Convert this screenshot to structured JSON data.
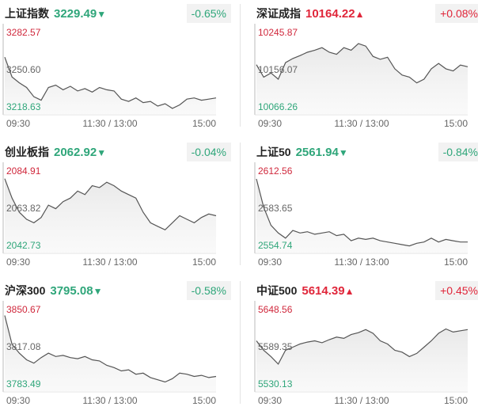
{
  "chart_data": [
    {
      "type": "line",
      "title": "上证指数",
      "price": 3229.49,
      "direction": "▼",
      "change": "-0.65%",
      "accent": "#2fa67a",
      "ylim": [
        3218.63,
        3282.57
      ],
      "yticks": [
        3218.63,
        {
          "value": 3250.6,
          "label": "3250.60"
        },
        3282.57
      ],
      "xticks": [
        "09:30",
        "11:30 / 13:00",
        "15:00"
      ],
      "series": [
        {
          "color": "#555555",
          "values": [
            3262,
            3245,
            3240,
            3236,
            3228,
            3225,
            3236,
            3238,
            3234,
            3237,
            3233,
            3235,
            3232,
            3236,
            3234,
            3233,
            3226,
            3224,
            3227,
            3223,
            3224,
            3220,
            3222,
            3218,
            3221,
            3226,
            3227,
            3225,
            3226,
            3227
          ]
        }
      ]
    },
    {
      "type": "line",
      "title": "深证成指",
      "price": 10164.22,
      "direction": "▲",
      "change": "+0.08%",
      "accent": "#e0263a",
      "ylim": [
        10066.26,
        10245.87
      ],
      "yticks": [
        10066.26,
        10156.07,
        10245.87
      ],
      "xticks": [
        "09:30",
        "11:30 / 13:00",
        "15:00"
      ],
      "series": [
        {
          "color": "#555555",
          "values": [
            10170,
            10140,
            10150,
            10135,
            10175,
            10185,
            10192,
            10200,
            10205,
            10211,
            10200,
            10195,
            10211,
            10205,
            10221,
            10215,
            10190,
            10183,
            10188,
            10160,
            10145,
            10140,
            10126,
            10135,
            10160,
            10173,
            10160,
            10155,
            10169,
            10165
          ]
        }
      ]
    },
    {
      "type": "line",
      "title": "创业板指",
      "price": 2062.92,
      "direction": "▼",
      "change": "-0.04%",
      "accent": "#2fa67a",
      "ylim": [
        2042.73,
        2084.91
      ],
      "yticks": [
        2042.73,
        2063.82,
        2084.91
      ],
      "xticks": [
        "09:30",
        "11:30 / 13:00",
        "15:00"
      ],
      "series": [
        {
          "color": "#555555",
          "values": [
            2081,
            2070,
            2062,
            2058,
            2056,
            2059,
            2066,
            2064,
            2068,
            2070,
            2074,
            2072,
            2077,
            2076,
            2079,
            2077,
            2074,
            2072,
            2070,
            2062,
            2056,
            2054,
            2052,
            2056,
            2060,
            2058,
            2056,
            2059,
            2061,
            2060
          ]
        }
      ]
    },
    {
      "type": "line",
      "title": "上证50",
      "price": 2561.94,
      "direction": "▼",
      "change": "-0.84%",
      "accent": "#2fa67a",
      "ylim": [
        2554.74,
        2612.56
      ],
      "yticks": [
        2554.74,
        2583.65,
        2612.56
      ],
      "xticks": [
        "09:30",
        "11:30 / 13:00",
        "15:00"
      ],
      "series": [
        {
          "color": "#555555",
          "values": [
            2607,
            2585,
            2571,
            2565,
            2561,
            2567,
            2565,
            2566,
            2564,
            2565,
            2566,
            2563,
            2564,
            2559,
            2561,
            2560,
            2561,
            2559,
            2558,
            2557,
            2556,
            2555,
            2557,
            2558,
            2561,
            2558,
            2560,
            2559,
            2558,
            2558
          ]
        }
      ]
    },
    {
      "type": "line",
      "title": "沪深300",
      "price": 3795.08,
      "direction": "▼",
      "change": "-0.58%",
      "accent": "#2fa67a",
      "ylim": [
        3783.49,
        3850.67
      ],
      "yticks": [
        3783.49,
        3817.08,
        3850.67
      ],
      "xticks": [
        "09:30",
        "11:30 / 13:00",
        "15:00"
      ],
      "series": [
        {
          "color": "#555555",
          "values": [
            3846,
            3820,
            3812,
            3806,
            3803,
            3808,
            3812,
            3809,
            3810,
            3808,
            3807,
            3809,
            3806,
            3805,
            3801,
            3799,
            3796,
            3797,
            3793,
            3794,
            3790,
            3788,
            3786,
            3789,
            3794,
            3793,
            3791,
            3792,
            3790,
            3791
          ]
        }
      ]
    },
    {
      "type": "line",
      "title": "中证500",
      "price": 5614.39,
      "direction": "▲",
      "change": "+0.45%",
      "accent": "#e0263a",
      "ylim": [
        5530.13,
        5648.56
      ],
      "yticks": [
        5530.13,
        5589.35,
        5648.56
      ],
      "xticks": [
        "09:30",
        "11:30 / 13:00",
        "15:00"
      ],
      "series": [
        {
          "color": "#555555",
          "values": [
            5600,
            5585,
            5575,
            5563,
            5585,
            5590,
            5595,
            5598,
            5600,
            5597,
            5602,
            5606,
            5604,
            5610,
            5613,
            5618,
            5612,
            5600,
            5595,
            5585,
            5582,
            5575,
            5580,
            5590,
            5600,
            5612,
            5619,
            5614,
            5616,
            5618
          ]
        }
      ]
    }
  ]
}
